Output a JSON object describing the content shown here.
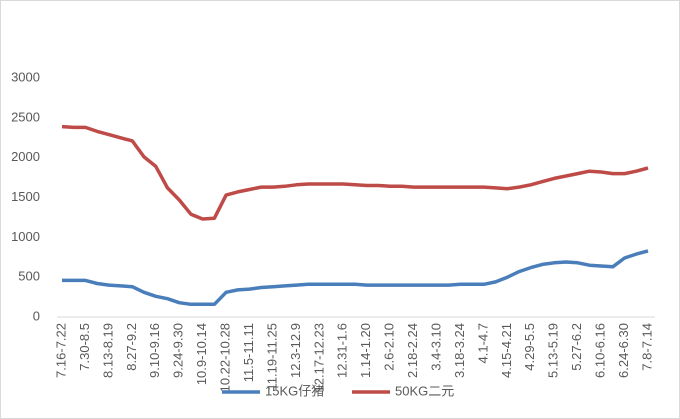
{
  "chart_data": {
    "type": "line",
    "categories": [
      "7.16-7.22",
      null,
      "7.30-8.5",
      null,
      "8.13-8.19",
      null,
      "8.27-9.2",
      null,
      "9.10-9.16",
      null,
      "9.24-9.30",
      null,
      "10.9-10.14",
      null,
      "10.22-10.28",
      null,
      "11.5-11.11",
      null,
      "11.19-11.25",
      null,
      "12.3-12.9",
      null,
      "12.17-12.23",
      null,
      "12.31-1.6",
      null,
      "1.14-1.20",
      null,
      "2.6-2.10",
      null,
      "2.18-2.24",
      null,
      "3.4-3.10",
      null,
      "3.18-3.24",
      null,
      "4.1-4.7",
      null,
      "4.15-4.21",
      null,
      "4.29-5.5",
      null,
      "5.13-5.19",
      null,
      "5.27-6.2",
      null,
      "6.10-6.16",
      null,
      "6.24-6.30",
      null,
      "7.8-7.14"
    ],
    "series": [
      {
        "name": "15KG仔猪",
        "color": "#4a7ebb",
        "values": [
          460,
          460,
          460,
          420,
          400,
          390,
          380,
          310,
          260,
          230,
          180,
          160,
          160,
          160,
          310,
          340,
          350,
          370,
          380,
          390,
          400,
          410,
          410,
          410,
          410,
          410,
          400,
          400,
          400,
          400,
          400,
          400,
          400,
          400,
          410,
          410,
          410,
          440,
          500,
          570,
          620,
          660,
          680,
          690,
          680,
          650,
          640,
          630,
          740,
          790,
          830
        ]
      },
      {
        "name": "50KG二元",
        "color": "#be4b48",
        "values": [
          2390,
          2380,
          2380,
          2330,
          2290,
          2250,
          2210,
          2010,
          1890,
          1620,
          1470,
          1290,
          1230,
          1240,
          1530,
          1570,
          1600,
          1630,
          1630,
          1640,
          1660,
          1670,
          1670,
          1670,
          1670,
          1660,
          1650,
          1650,
          1640,
          1640,
          1630,
          1630,
          1630,
          1630,
          1630,
          1630,
          1630,
          1620,
          1610,
          1630,
          1660,
          1700,
          1740,
          1770,
          1800,
          1830,
          1820,
          1800,
          1800,
          1830,
          1870
        ]
      }
    ],
    "ylim": [
      0,
      3000
    ],
    "yticks": [
      0,
      500,
      1000,
      1500,
      2000,
      2500,
      3000
    ],
    "grid": false,
    "legend": "bottom"
  }
}
